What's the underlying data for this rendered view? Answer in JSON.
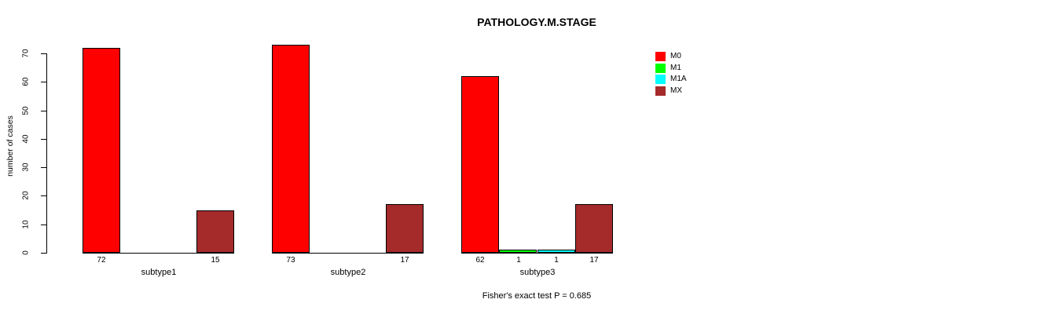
{
  "title": "PATHOLOGY.M.STAGE",
  "annotation": "Fisher's exact test P = 0.685",
  "chart_data": {
    "type": "bar",
    "grouped": true,
    "title": "PATHOLOGY.M.STAGE",
    "xlabel": "",
    "ylabel": "number of cases",
    "ylim": [
      0,
      70
    ],
    "yticks": [
      0,
      10,
      20,
      30,
      40,
      50,
      60,
      70
    ],
    "grid": "off",
    "legend_position": "right",
    "bar_value_labels": true,
    "annotation": "Fisher's exact test P = 0.685",
    "categories": [
      "subtype1",
      "subtype2",
      "subtype3"
    ],
    "series": [
      {
        "name": "M0",
        "color": "#FF0000",
        "values": [
          72,
          73,
          62
        ]
      },
      {
        "name": "M1",
        "color": "#00FF00",
        "values": [
          0,
          0,
          1
        ]
      },
      {
        "name": "M1A",
        "color": "#00FFFF",
        "values": [
          0,
          0,
          1
        ]
      },
      {
        "name": "MX",
        "color": "#A52A2A",
        "values": [
          15,
          17,
          17
        ]
      }
    ]
  }
}
